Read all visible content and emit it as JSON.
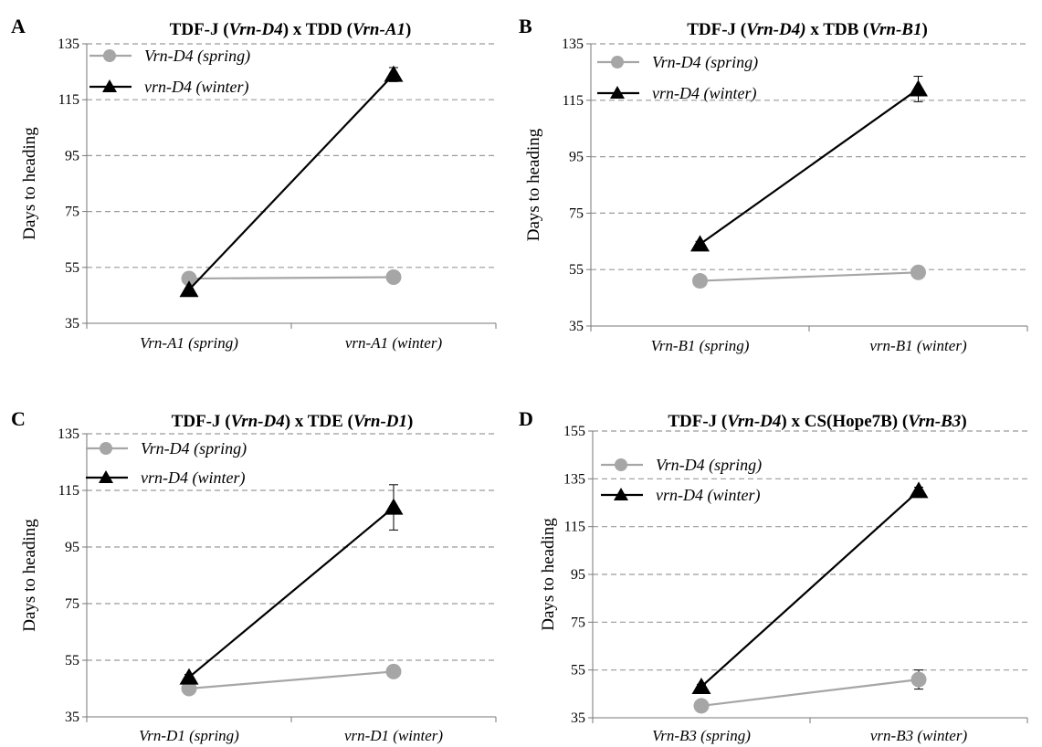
{
  "chart_data": [
    {
      "panel": "A",
      "type": "line",
      "title": "TDF-J (Vrn-D4) x TDD (Vrn-A1)",
      "title_parts": [
        {
          "text": "TDF-J (",
          "italic": false
        },
        {
          "text": "Vrn-D4",
          "italic": true
        },
        {
          "text": ") x TDD (",
          "italic": false
        },
        {
          "text": "Vrn-A1",
          "italic": true
        },
        {
          "text": ")",
          "italic": false
        }
      ],
      "ylabel": "Days to heading",
      "xlabel": "",
      "ylim": [
        35,
        135
      ],
      "yticks": [
        35,
        55,
        75,
        95,
        115,
        135
      ],
      "categories": [
        "Vrn-A1 (spring)",
        "vrn-A1 (winter)"
      ],
      "legend_position": "top-left",
      "grid": "horizontal dashed",
      "series": [
        {
          "name": "Vrn-D4 (spring)",
          "marker": "circle",
          "color": "#a6a6a6",
          "values": [
            51,
            51.5
          ],
          "errors": [
            0.5,
            0.5
          ]
        },
        {
          "name": "vrn-D4 (winter)",
          "marker": "triangle",
          "color": "#000000",
          "values": [
            47,
            124
          ],
          "errors": [
            0.5,
            2.5
          ]
        }
      ]
    },
    {
      "panel": "B",
      "type": "line",
      "title": "TDF-J (Vrn-D4) x TDB (Vrn-B1)",
      "title_parts": [
        {
          "text": "TDF-J (",
          "italic": false
        },
        {
          "text": "Vrn-D4)",
          "italic": true
        },
        {
          "text": " x TDB (",
          "italic": false
        },
        {
          "text": "Vrn-B1",
          "italic": true
        },
        {
          "text": ")",
          "italic": false
        }
      ],
      "ylabel": "Days to heading",
      "xlabel": "",
      "ylim": [
        35,
        135
      ],
      "yticks": [
        35,
        55,
        75,
        95,
        115,
        135
      ],
      "categories": [
        "Vrn-B1 (spring)",
        "vrn-B1 (winter)"
      ],
      "legend_position": "top-left",
      "grid": "horizontal dashed",
      "series": [
        {
          "name": "Vrn-D4 (spring)",
          "marker": "circle",
          "color": "#a6a6a6",
          "values": [
            51,
            54
          ],
          "errors": [
            0.5,
            0.5
          ]
        },
        {
          "name": "vrn-D4 (winter)",
          "marker": "triangle",
          "color": "#000000",
          "values": [
            64,
            119
          ],
          "errors": [
            1,
            4.5
          ]
        }
      ]
    },
    {
      "panel": "C",
      "type": "line",
      "title": "TDF-J (Vrn-D4) x TDE (Vrn-D1)",
      "title_parts": [
        {
          "text": "TDF-J (",
          "italic": false
        },
        {
          "text": "Vrn-D4",
          "italic": true
        },
        {
          "text": ") x TDE (",
          "italic": false
        },
        {
          "text": "Vrn-D1",
          "italic": true
        },
        {
          "text": ")",
          "italic": false
        }
      ],
      "ylabel": "Days to heading",
      "xlabel": "",
      "ylim": [
        35,
        135
      ],
      "yticks": [
        35,
        55,
        75,
        95,
        115,
        135
      ],
      "categories": [
        "Vrn-D1 (spring)",
        "vrn-D1 (winter)"
      ],
      "legend_position": "top-left",
      "grid": "horizontal dashed",
      "series": [
        {
          "name": "Vrn-D4 (spring)",
          "marker": "circle",
          "color": "#a6a6a6",
          "values": [
            45,
            51
          ],
          "errors": [
            0.5,
            0.5
          ]
        },
        {
          "name": "vrn-D4 (winter)",
          "marker": "triangle",
          "color": "#000000",
          "values": [
            49,
            109
          ],
          "errors": [
            1,
            8
          ]
        }
      ]
    },
    {
      "panel": "D",
      "type": "line",
      "title": "TDF-J (Vrn-D4) x CS(Hope7B) (Vrn-B3)",
      "title_parts": [
        {
          "text": "TDF-J (",
          "italic": false
        },
        {
          "text": "Vrn-D4",
          "italic": true
        },
        {
          "text": ") x CS(Hope7B) (",
          "italic": false
        },
        {
          "text": "Vrn-B3",
          "italic": true
        },
        {
          "text": ")",
          "italic": false
        }
      ],
      "ylabel": "Days to heading",
      "xlabel": "",
      "ylim": [
        35,
        155
      ],
      "yticks": [
        35,
        55,
        75,
        95,
        115,
        135,
        155
      ],
      "categories": [
        "Vrn-B3 (spring)",
        "vrn-B3 (winter)"
      ],
      "legend_position": "top-left",
      "grid": "horizontal dashed",
      "series": [
        {
          "name": "Vrn-D4 (spring)",
          "marker": "circle",
          "color": "#a6a6a6",
          "values": [
            40,
            51
          ],
          "errors": [
            0.5,
            4
          ]
        },
        {
          "name": "vrn-D4 (winter)",
          "marker": "triangle",
          "color": "#000000",
          "values": [
            48,
            130
          ],
          "errors": [
            1,
            1.5
          ]
        }
      ]
    }
  ]
}
